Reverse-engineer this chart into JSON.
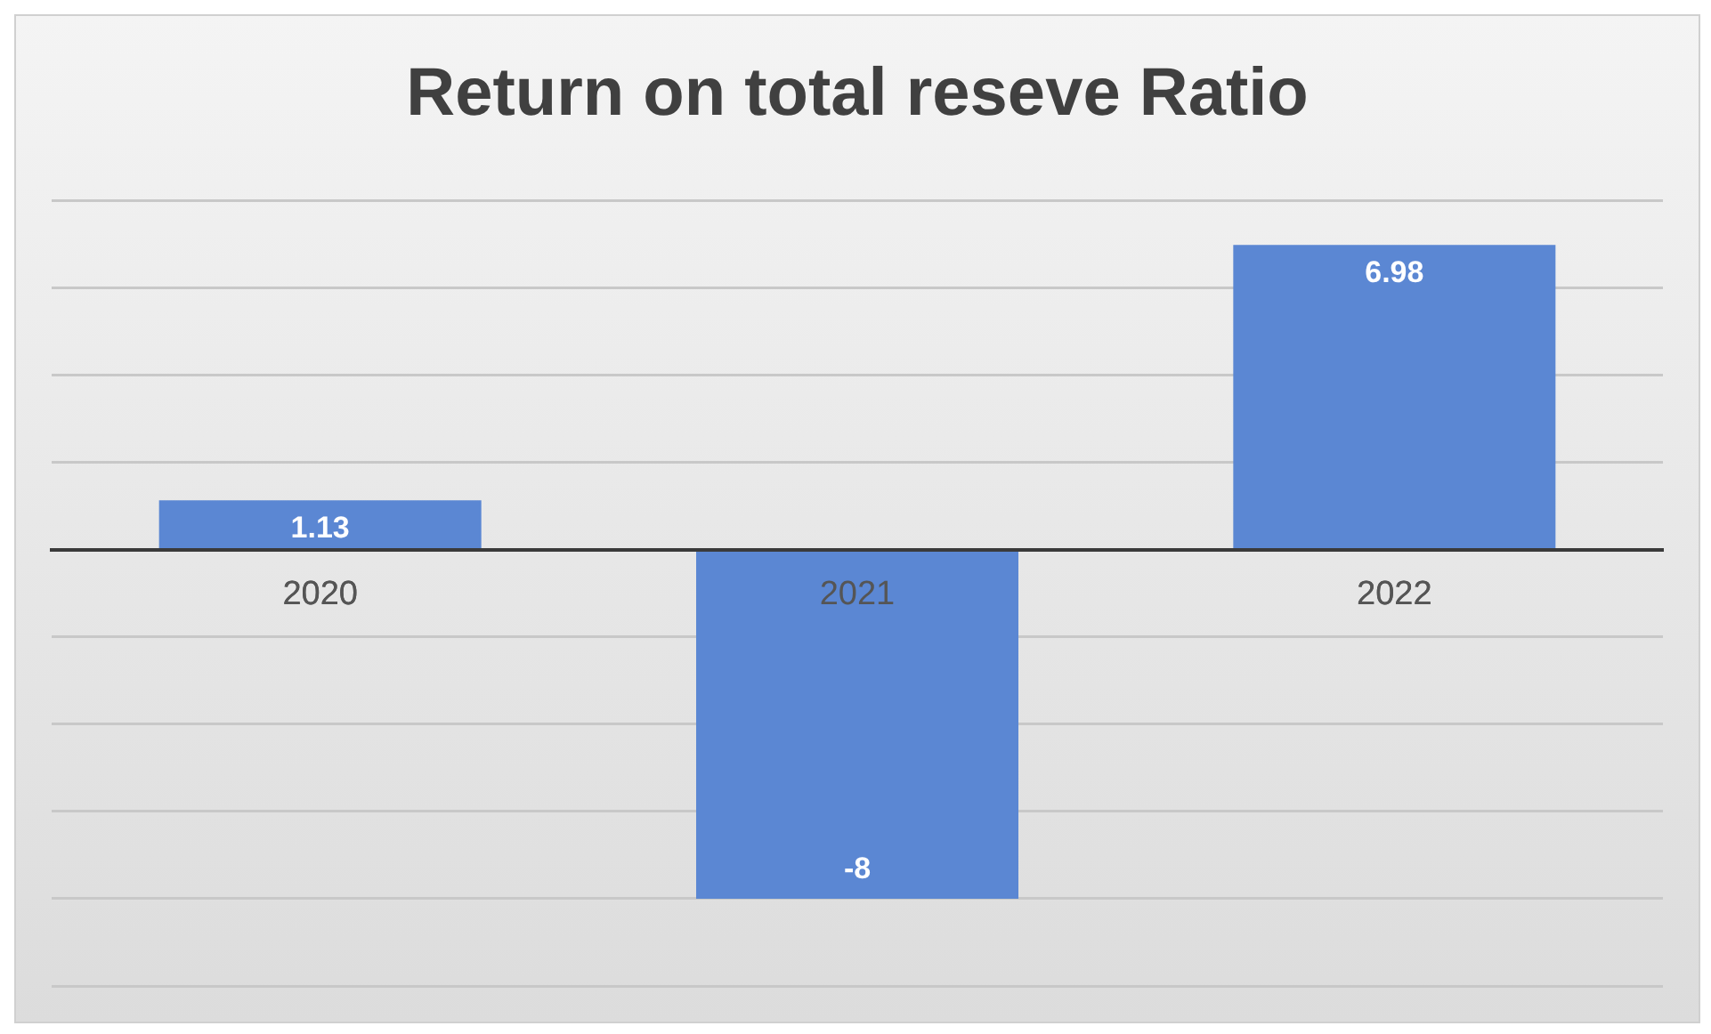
{
  "chart_data": {
    "type": "bar",
    "title": "Return on total reseve Ratio",
    "categories": [
      "2020",
      "2021",
      "2022"
    ],
    "values": [
      1.13,
      -8,
      6.98
    ],
    "color": "#5b87d3",
    "ylim": [
      -10,
      8
    ],
    "yticks": [
      {
        "value": -10,
        "label": null
      },
      {
        "value": -8,
        "label": null
      },
      {
        "value": -6,
        "label": null
      },
      {
        "value": -4,
        "label": null
      },
      {
        "value": -2,
        "label": null
      },
      {
        "value": 0,
        "label": null
      },
      {
        "value": 2,
        "label": null
      },
      {
        "value": 4,
        "label": null
      },
      {
        "value": 6,
        "label": null
      },
      {
        "value": 8,
        "label": null
      }
    ],
    "grid": "y",
    "tick_labels": "x",
    "data_labels": true,
    "legend": false
  }
}
